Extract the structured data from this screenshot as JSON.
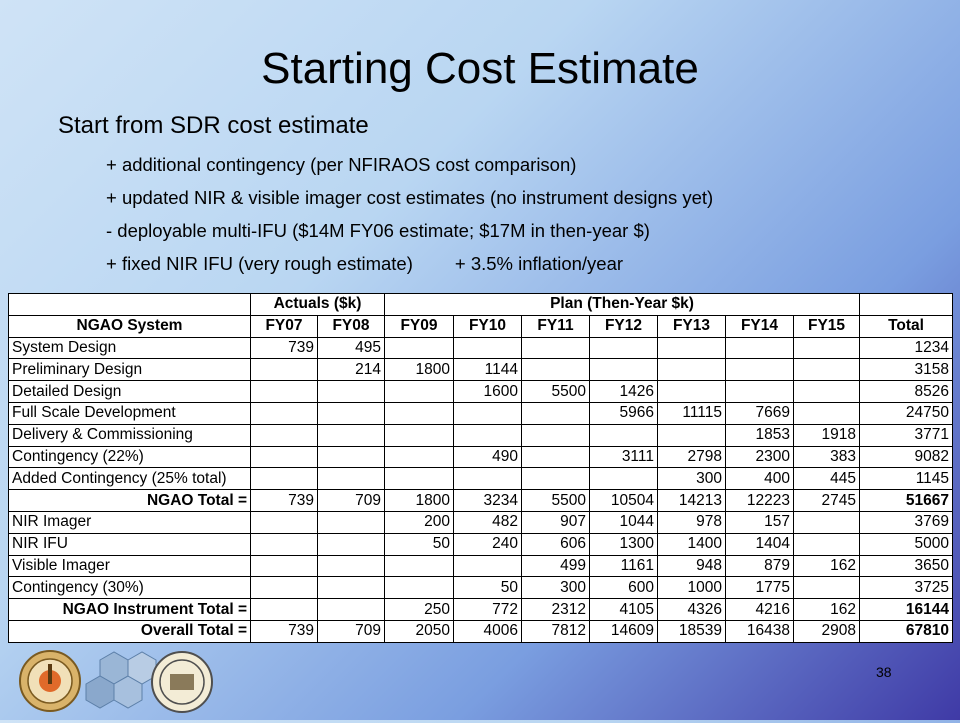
{
  "slide": {
    "title": "Starting Cost Estimate",
    "bullet_main": "Start from SDR cost estimate",
    "sub_bullets": [
      "+ additional contingency (per NFIRAOS cost comparison)",
      "+ updated NIR & visible imager cost estimates (no instrument designs yet)",
      "- deployable multi-IFU ($14M FY06 estimate; $17M in then-year $)",
      "+ fixed NIR IFU (very rough estimate)"
    ],
    "sub_bullet_extra": "+ 3.5% inflation/year",
    "page_number": "38"
  },
  "table": {
    "group_headers": {
      "blank": "",
      "actuals": "Actuals ($k)",
      "plan": "Plan (Then-Year $k)",
      "blank_total": ""
    },
    "columns": [
      "NGAO System",
      "FY07",
      "FY08",
      "FY09",
      "FY10",
      "FY11",
      "FY12",
      "FY13",
      "FY14",
      "FY15",
      "Total"
    ],
    "rows": [
      {
        "label": "System Design",
        "values": [
          "739",
          "495",
          "",
          "",
          "",
          "",
          "",
          "",
          "",
          "1234"
        ],
        "bold": false
      },
      {
        "label": "Preliminary Design",
        "values": [
          "",
          "214",
          "1800",
          "1144",
          "",
          "",
          "",
          "",
          "",
          "3158"
        ],
        "bold": false
      },
      {
        "label": "Detailed Design",
        "values": [
          "",
          "",
          "",
          "1600",
          "5500",
          "1426",
          "",
          "",
          "",
          "8526"
        ],
        "bold": false
      },
      {
        "label": "Full Scale Development",
        "values": [
          "",
          "",
          "",
          "",
          "",
          "5966",
          "11115",
          "7669",
          "",
          "24750"
        ],
        "bold": false
      },
      {
        "label": "Delivery & Commissioning",
        "values": [
          "",
          "",
          "",
          "",
          "",
          "",
          "",
          "1853",
          "1918",
          "3771"
        ],
        "bold": false
      },
      {
        "label": "Contingency (22%)",
        "values": [
          "",
          "",
          "",
          "490",
          "",
          "3111",
          "2798",
          "2300",
          "383",
          "9082"
        ],
        "bold": false
      },
      {
        "label": "Added Contingency (25% total)",
        "values": [
          "",
          "",
          "",
          "",
          "",
          "",
          "300",
          "400",
          "445",
          "1145"
        ],
        "bold": false
      },
      {
        "label": "NGAO Total =",
        "values": [
          "739",
          "709",
          "1800",
          "3234",
          "5500",
          "10504",
          "14213",
          "12223",
          "2745",
          "51667"
        ],
        "bold": true
      },
      {
        "label": "NIR Imager",
        "values": [
          "",
          "",
          "200",
          "482",
          "907",
          "1044",
          "978",
          "157",
          "",
          "3769"
        ],
        "bold": false
      },
      {
        "label": "NIR IFU",
        "values": [
          "",
          "",
          "50",
          "240",
          "606",
          "1300",
          "1400",
          "1404",
          "",
          "5000"
        ],
        "bold": false
      },
      {
        "label": "Visible Imager",
        "values": [
          "",
          "",
          "",
          "",
          "499",
          "1161",
          "948",
          "879",
          "162",
          "3650"
        ],
        "bold": false
      },
      {
        "label": "Contingency (30%)",
        "values": [
          "",
          "",
          "",
          "50",
          "300",
          "600",
          "1000",
          "1775",
          "",
          "3725"
        ],
        "bold": false
      },
      {
        "label": "NGAO Instrument Total =",
        "values": [
          "",
          "",
          "250",
          "772",
          "2312",
          "4105",
          "4326",
          "4216",
          "162",
          "16144"
        ],
        "bold": true
      },
      {
        "label": "Overall Total =",
        "values": [
          "739",
          "709",
          "2050",
          "4006",
          "7812",
          "14609",
          "18539",
          "16438",
          "2908",
          "67810"
        ],
        "bold": true
      }
    ]
  },
  "logos": {
    "left_logo_icon": "caltech-seal-icon",
    "middle_logo_icon": "keck-hex-mirror-icon",
    "right_logo_icon": "uc-seal-icon"
  },
  "colors": {
    "background_start": "#cfe3f6",
    "background_end": "#3f3aa6",
    "table_bg": "#ffffff"
  }
}
